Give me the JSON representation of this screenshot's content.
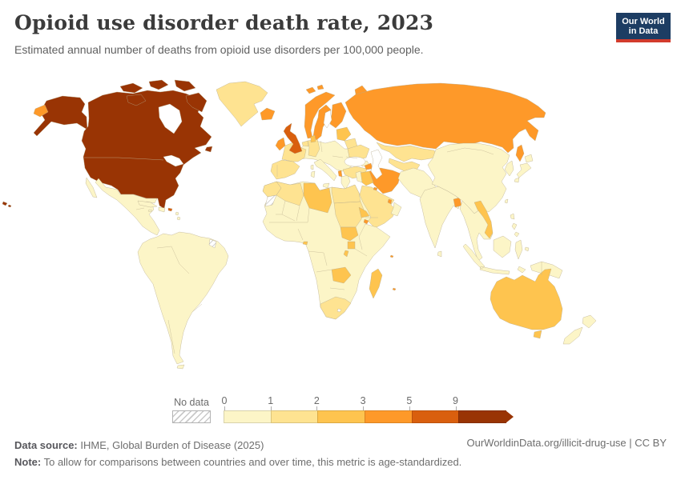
{
  "header": {
    "title": "Opioid use disorder death rate, 2023",
    "subtitle": "Estimated annual number of deaths from opioid use disorders per 100,000 people."
  },
  "logo": {
    "line1": "Our World",
    "line2": "in Data",
    "bg_color": "#1d3d63",
    "accent_color": "#d23b2c"
  },
  "legend": {
    "no_data_label": "No data",
    "ticks": [
      "0",
      "1",
      "2",
      "3",
      "5",
      "9"
    ]
  },
  "footer": {
    "source_label": "Data source:",
    "source_text": " IHME, Global Burden of Disease (2025)",
    "link_text": "OurWorldinData.org/illicit-drug-use | CC BY",
    "note_label": "Note:",
    "note_text": " To allow for comparisons between countries and over time, this metric is age-standardized."
  },
  "chart_data": {
    "type": "choropleth-map",
    "title": "Opioid use disorder death rate, 2023",
    "unit": "deaths per 100,000 people",
    "year": 2023,
    "projection": "world",
    "bin_labels": [
      "0-1",
      "1-2",
      "2-3",
      "3-5",
      "5-9",
      "9+"
    ],
    "bins": [
      {
        "min": 0,
        "max": 1,
        "color": "#fcf5c7"
      },
      {
        "min": 1,
        "max": 2,
        "color": "#fee391"
      },
      {
        "min": 2,
        "max": 3,
        "color": "#fec44f"
      },
      {
        "min": 3,
        "max": 5,
        "color": "#fe9929"
      },
      {
        "min": 5,
        "max": 9,
        "color": "#d95f0e"
      },
      {
        "min": 9,
        "max": null,
        "color": "#993404"
      }
    ],
    "no_data": {
      "label": "No data",
      "fill": "hatch"
    },
    "regions": {
      "united-states": 5,
      "canada": 5,
      "arctic-canada": 5,
      "newfoundland": 5,
      "hawaii": 5,
      "puerto-rico": 4,
      "united-kingdom": 4,
      "russia": 3,
      "chukotka": 3,
      "sakhalin": 3,
      "novaya-zemlya": 3,
      "svalbard": 3,
      "norway": 3,
      "sweden": 3,
      "finland": 3,
      "iceland": 3,
      "ireland": 3,
      "iran": 3,
      "azerbaijan": 3,
      "albania": 3,
      "bangladesh": 3,
      "djibouti": 3,
      "qatar": 3,
      "kuwait": 3,
      "indian-ocean-islands": 3,
      "libya": 2,
      "baltic-states": 2,
      "denmark": 2,
      "iraq": 2,
      "south-sudan": 2,
      "eritrea": 2,
      "uganda": 2,
      "rwanda-burundi": 2,
      "equatorial-guinea": 2,
      "zambia": 2,
      "madagascar": 2,
      "vietnam": 2,
      "australia": 2,
      "tasmania": 2,
      "greenland": 1,
      "iberia": 1,
      "france": 1,
      "benelux": 1,
      "germany": 1,
      "belarus": 1,
      "ukraine": 1,
      "turkey": 1,
      "kazakhstan": 1,
      "central-asia": 1,
      "morocco": 1,
      "algeria": 1,
      "egypt": 1,
      "sudan": 1,
      "saudi-arabia-yemen": 1,
      "south-africa": 1,
      "mexico-central-america": 0,
      "caribbean": 0,
      "south-america": 0,
      "tierra-del-fuego": 0,
      "europe-other": 0,
      "italy": 0,
      "greece": 0,
      "caucasus": 0,
      "levant": 0,
      "oman": 0,
      "afghanistan-pakistan": 0,
      "india": 0,
      "sri-lanka": 0,
      "china-mongolia": 0,
      "korea": 0,
      "japan": 0,
      "taiwan": 0,
      "southeast-asia": 0,
      "philippines": 0,
      "indonesia": 0,
      "new-guinea": 0,
      "new-zealand": 0,
      "africa-other": 0,
      "western-sahara": -1,
      "french-guiana": -1
    }
  }
}
